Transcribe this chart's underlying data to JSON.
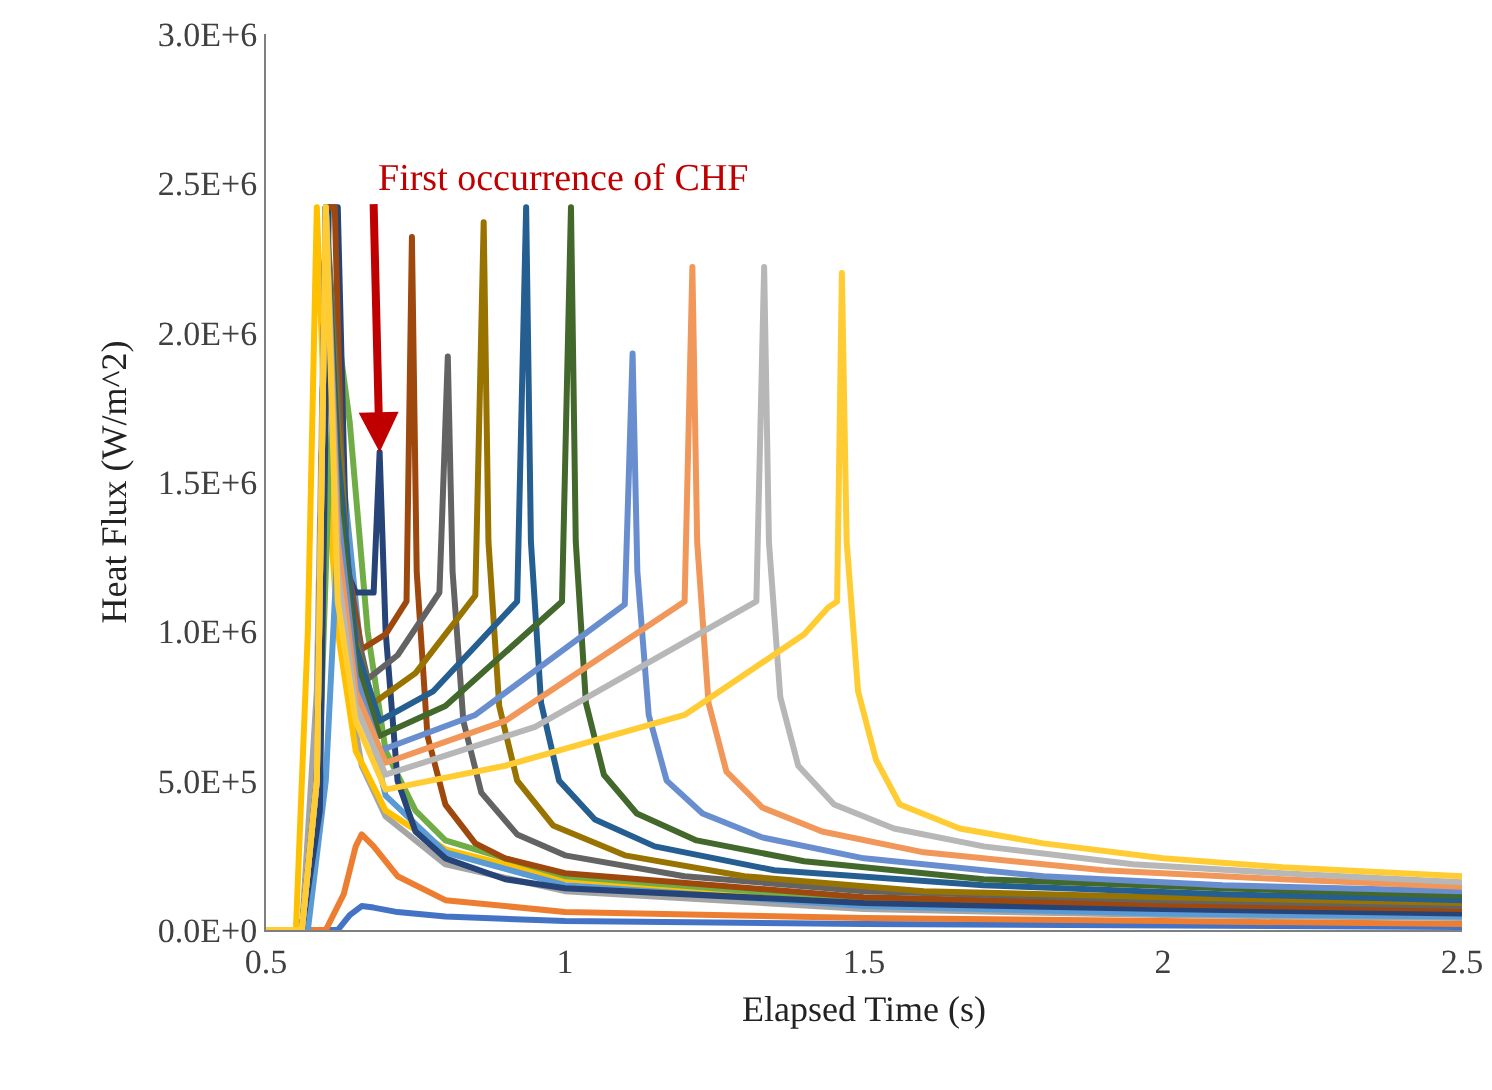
{
  "chart_data": {
    "type": "line",
    "xlabel": "Elapsed Time (s)",
    "ylabel": "Heat Flux (W/m^2)",
    "xlim": [
      0.5,
      2.5
    ],
    "xticks": [
      0.5,
      1,
      1.5,
      2,
      2.5
    ],
    "ylim": [
      0,
      3000000
    ],
    "yticks": [
      {
        "value": 0,
        "label": "0.0E+0"
      },
      {
        "value": 500000,
        "label": "5.0E+5"
      },
      {
        "value": 1000000,
        "label": "1.0E+6"
      },
      {
        "value": 1500000,
        "label": "1.5E+6"
      },
      {
        "value": 2000000,
        "label": "2.0E+6"
      },
      {
        "value": 2500000,
        "label": "2.5E+6"
      },
      {
        "value": 3000000,
        "label": "3.0E+6"
      }
    ],
    "grid": false,
    "marker": "none",
    "line_style": "solid",
    "annotations": [
      {
        "text": "First occurrence of CHF",
        "x": 0.69,
        "y": 1600000
      }
    ],
    "series": [
      {
        "color": "#4472c4",
        "x": [
          0.5,
          0.62,
          0.64,
          0.66,
          0.68,
          0.72,
          0.8,
          1.0,
          1.5,
          2.5
        ],
        "values": [
          0,
          0,
          50000,
          80000,
          75000,
          60000,
          45000,
          30000,
          20000,
          10000
        ]
      },
      {
        "color": "#ed7d31",
        "x": [
          0.5,
          0.6,
          0.63,
          0.65,
          0.66,
          0.68,
          0.72,
          0.8,
          1.0,
          1.5,
          2.0,
          2.5
        ],
        "values": [
          0,
          0,
          120000,
          280000,
          320000,
          280000,
          180000,
          100000,
          60000,
          40000,
          30000,
          20000
        ]
      },
      {
        "color": "#a5a5a5",
        "x": [
          0.5,
          0.56,
          0.585,
          0.6,
          0.615,
          0.63,
          0.66,
          0.7,
          0.8,
          1.0,
          1.5,
          2.0,
          2.5
        ],
        "values": [
          0,
          0,
          800000,
          2420000,
          1500000,
          900000,
          550000,
          380000,
          220000,
          130000,
          70000,
          50000,
          40000
        ]
      },
      {
        "color": "#ffc000",
        "x": [
          0.5,
          0.55,
          0.57,
          0.585,
          0.6,
          0.62,
          0.65,
          0.7,
          0.8,
          1.0,
          1.5,
          2.0,
          2.5
        ],
        "values": [
          0,
          0,
          1000000,
          2420000,
          1600000,
          1000000,
          600000,
          400000,
          270000,
          170000,
          90000,
          65000,
          50000
        ]
      },
      {
        "color": "#5b9bd5",
        "x": [
          0.5,
          0.57,
          0.6,
          0.615,
          0.627,
          0.64,
          0.67,
          0.7,
          0.8,
          1.0,
          1.5,
          2.0,
          2.5
        ],
        "values": [
          0,
          0,
          500000,
          1100000,
          1550000,
          1300000,
          700000,
          450000,
          260000,
          150000,
          80000,
          55000,
          45000
        ]
      },
      {
        "color": "#70ad47",
        "x": [
          0.5,
          0.56,
          0.59,
          0.605,
          0.62,
          0.64,
          0.67,
          0.7,
          0.75,
          0.8,
          1.0,
          1.5,
          2.0,
          2.5
        ],
        "values": [
          0,
          0,
          600000,
          1500000,
          2000000,
          1700000,
          1000000,
          600000,
          400000,
          300000,
          180000,
          100000,
          75000,
          60000
        ]
      },
      {
        "color": "#264478",
        "x": [
          0.5,
          0.56,
          0.59,
          0.605,
          0.62,
          0.635,
          0.65,
          0.68,
          0.69,
          0.7,
          0.72,
          0.75,
          0.8,
          0.9,
          1.0,
          1.5,
          2.0,
          2.5
        ],
        "values": [
          0,
          0,
          400000,
          2420000,
          2420000,
          1200000,
          1130000,
          1130000,
          1600000,
          1000000,
          500000,
          330000,
          240000,
          170000,
          140000,
          90000,
          70000,
          55000
        ]
      },
      {
        "color": "#9e480e",
        "x": [
          0.5,
          0.56,
          0.585,
          0.6,
          0.615,
          0.63,
          0.66,
          0.7,
          0.735,
          0.744,
          0.752,
          0.77,
          0.8,
          0.85,
          0.9,
          1.0,
          1.5,
          2.0,
          2.5
        ],
        "values": [
          0,
          0,
          500000,
          2420000,
          2420000,
          1300000,
          940000,
          990000,
          1100000,
          2320000,
          1200000,
          650000,
          420000,
          290000,
          240000,
          190000,
          110000,
          85000,
          70000
        ]
      },
      {
        "color": "#636363",
        "x": [
          0.5,
          0.56,
          0.585,
          0.6,
          0.62,
          0.64,
          0.67,
          0.72,
          0.79,
          0.804,
          0.812,
          0.83,
          0.86,
          0.92,
          1.0,
          1.2,
          1.5,
          2.0,
          2.5
        ],
        "values": [
          0,
          0,
          500000,
          2420000,
          1800000,
          1100000,
          840000,
          920000,
          1130000,
          1920000,
          1200000,
          700000,
          460000,
          320000,
          250000,
          180000,
          130000,
          100000,
          80000
        ]
      },
      {
        "color": "#997300",
        "x": [
          0.5,
          0.56,
          0.585,
          0.6,
          0.62,
          0.645,
          0.68,
          0.75,
          0.85,
          0.864,
          0.872,
          0.89,
          0.92,
          0.98,
          1.1,
          1.3,
          1.6,
          2.0,
          2.5
        ],
        "values": [
          0,
          0,
          500000,
          2420000,
          1700000,
          1000000,
          760000,
          860000,
          1120000,
          2370000,
          1300000,
          750000,
          500000,
          350000,
          250000,
          180000,
          130000,
          110000,
          90000
        ]
      },
      {
        "color": "#255e91",
        "x": [
          0.5,
          0.56,
          0.585,
          0.6,
          0.62,
          0.65,
          0.69,
          0.78,
          0.92,
          0.935,
          0.943,
          0.96,
          0.99,
          1.05,
          1.15,
          1.35,
          1.7,
          2.1,
          2.5
        ],
        "values": [
          0,
          0,
          500000,
          2420000,
          1600000,
          950000,
          700000,
          800000,
          1100000,
          2420000,
          1300000,
          760000,
          500000,
          370000,
          280000,
          200000,
          150000,
          120000,
          100000
        ]
      },
      {
        "color": "#43682b",
        "x": [
          0.5,
          0.56,
          0.585,
          0.6,
          0.62,
          0.65,
          0.69,
          0.8,
          0.995,
          1.01,
          1.018,
          1.035,
          1.065,
          1.12,
          1.22,
          1.4,
          1.7,
          2.1,
          2.5
        ],
        "values": [
          0,
          0,
          500000,
          2420000,
          1500000,
          900000,
          650000,
          750000,
          1100000,
          2420000,
          1300000,
          760000,
          520000,
          390000,
          300000,
          230000,
          170000,
          140000,
          115000
        ]
      },
      {
        "color": "#698ed0",
        "x": [
          0.5,
          0.56,
          0.585,
          0.6,
          0.62,
          0.65,
          0.69,
          0.85,
          1.1,
          1.113,
          1.121,
          1.14,
          1.17,
          1.23,
          1.33,
          1.5,
          1.8,
          2.1,
          2.5
        ],
        "values": [
          0,
          0,
          500000,
          2420000,
          1400000,
          850000,
          600000,
          720000,
          1090000,
          1930000,
          1200000,
          720000,
          500000,
          390000,
          310000,
          240000,
          180000,
          150000,
          130000
        ]
      },
      {
        "color": "#f1975a",
        "x": [
          0.5,
          0.56,
          0.585,
          0.6,
          0.62,
          0.65,
          0.7,
          0.9,
          1.2,
          1.213,
          1.221,
          1.24,
          1.27,
          1.33,
          1.43,
          1.6,
          1.9,
          2.2,
          2.5
        ],
        "values": [
          0,
          0,
          500000,
          2420000,
          1300000,
          800000,
          560000,
          700000,
          1100000,
          2220000,
          1300000,
          760000,
          530000,
          410000,
          330000,
          260000,
          200000,
          170000,
          145000
        ]
      },
      {
        "color": "#b7b7b7",
        "x": [
          0.5,
          0.56,
          0.585,
          0.6,
          0.62,
          0.65,
          0.7,
          0.95,
          1.32,
          1.333,
          1.341,
          1.36,
          1.39,
          1.45,
          1.55,
          1.7,
          1.95,
          2.2,
          2.5
        ],
        "values": [
          0,
          0,
          500000,
          2420000,
          1200000,
          750000,
          520000,
          680000,
          1100000,
          2220000,
          1300000,
          780000,
          550000,
          420000,
          340000,
          280000,
          220000,
          190000,
          160000
        ]
      },
      {
        "color": "#ffcd33",
        "x": [
          0.5,
          0.56,
          0.585,
          0.6,
          0.62,
          0.65,
          0.7,
          0.9,
          1.2,
          1.4,
          1.44,
          1.455,
          1.463,
          1.471,
          1.49,
          1.52,
          1.56,
          1.66,
          1.8,
          2.0,
          2.2,
          2.5
        ],
        "values": [
          0,
          0,
          500000,
          2420000,
          1100000,
          700000,
          470000,
          550000,
          720000,
          990000,
          1080000,
          1100000,
          2200000,
          1300000,
          800000,
          570000,
          420000,
          340000,
          290000,
          240000,
          210000,
          180000
        ]
      }
    ]
  }
}
